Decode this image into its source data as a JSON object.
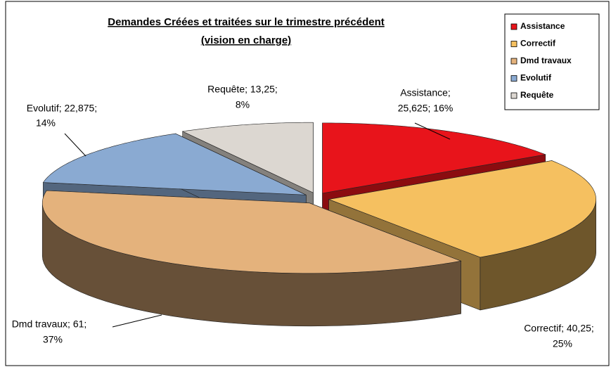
{
  "chart_data": {
    "type": "pie3d",
    "title": [
      "Demandes Créées et traitées sur le trimestre précédent",
      "(vision en charge)"
    ],
    "categories": [
      "Assistance",
      "Correctif",
      "Dmd travaux",
      "Evolutif",
      "Requête"
    ],
    "values": [
      25.625,
      40.25,
      61,
      22.875,
      13.25
    ],
    "value_labels": [
      [
        "Assistance;",
        "25,625; 16%"
      ],
      [
        "Correctif; 40,25;",
        "25%"
      ],
      [
        "Dmd travaux; 61;",
        "37%"
      ],
      [
        "Evolutif; 22,875;",
        "14%"
      ],
      [
        "Requête; 13,25;",
        "8%"
      ]
    ],
    "colors": [
      "#e8141b",
      "#f5c060",
      "#e4b27c",
      "#8aaad2",
      "#dcd7d1"
    ],
    "legend": "top-right"
  }
}
